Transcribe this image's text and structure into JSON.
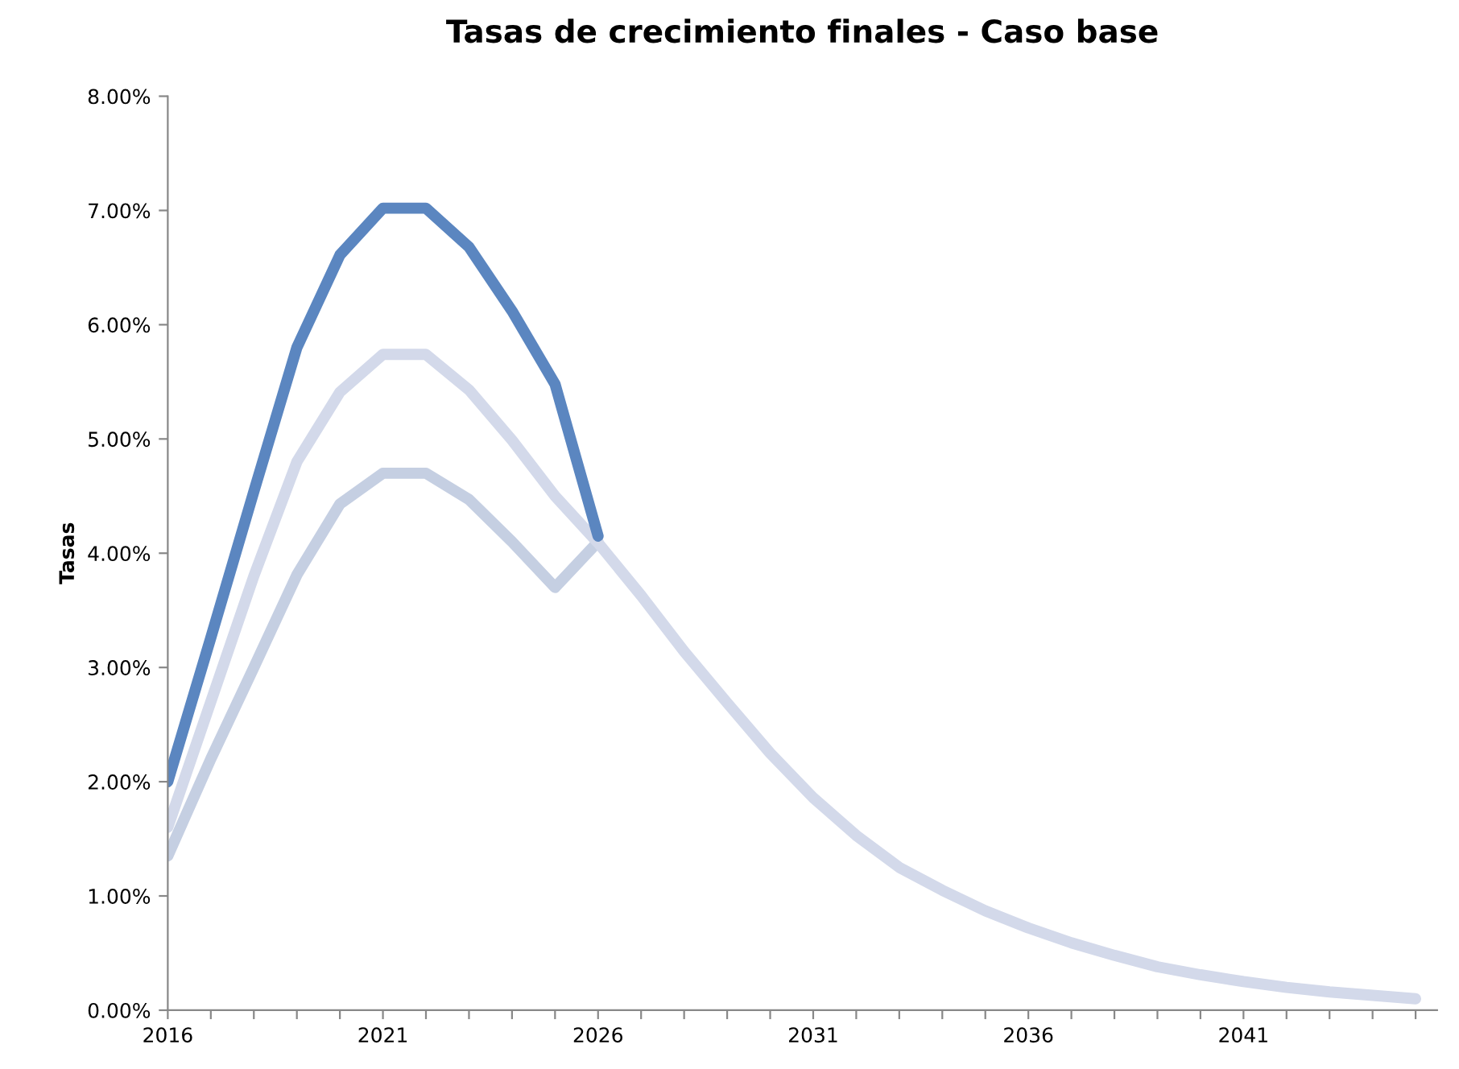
{
  "chart_data": {
    "type": "line",
    "title": "Tasas de crecimiento finales - Caso base",
    "ylabel": "Tasas",
    "x": [
      2016,
      2017,
      2018,
      2019,
      2020,
      2021,
      2022,
      2023,
      2024,
      2025,
      2026,
      2027,
      2028,
      2029,
      2030,
      2031,
      2032,
      2033,
      2034,
      2035,
      2036,
      2037,
      2038,
      2039,
      2040,
      2041,
      2042,
      2043,
      2044,
      2045
    ],
    "series": [
      {
        "color": "#c5cfe2",
        "values": [
          1.35,
          2.2,
          3.0,
          3.81,
          4.43,
          4.7,
          4.7,
          4.47,
          4.1,
          3.7,
          4.1,
          null,
          null,
          null,
          null,
          null,
          null,
          null,
          null,
          null,
          null,
          null,
          null,
          null,
          null,
          null,
          null,
          null,
          null,
          null
        ]
      },
      {
        "color": "#d3d9ea",
        "values": [
          1.6,
          2.7,
          3.8,
          4.8,
          5.41,
          5.74,
          5.74,
          5.43,
          4.99,
          4.5,
          4.09,
          3.63,
          3.14,
          2.69,
          2.25,
          1.86,
          1.53,
          1.25,
          1.05,
          0.87,
          0.72,
          0.59,
          0.48,
          0.38,
          0.31,
          0.25,
          0.2,
          0.16,
          0.13,
          0.1
        ]
      },
      {
        "color": "#5b86c0",
        "values": [
          2.0,
          3.26,
          4.54,
          5.8,
          6.61,
          7.02,
          7.02,
          6.68,
          6.12,
          5.48,
          4.15,
          null,
          null,
          null,
          null,
          null,
          null,
          null,
          null,
          null,
          null,
          null,
          null,
          null,
          null,
          null,
          null,
          null,
          null,
          null
        ]
      }
    ],
    "xlim": [
      2016,
      2045.5
    ],
    "xticks": [
      2016,
      {
        "value": 2017,
        "label": null
      },
      {
        "value": 2018,
        "label": null
      },
      {
        "value": 2019,
        "label": null
      },
      {
        "value": 2020,
        "label": null
      },
      2021,
      {
        "value": 2022,
        "label": null
      },
      {
        "value": 2023,
        "label": null
      },
      {
        "value": 2024,
        "label": null
      },
      {
        "value": 2025,
        "label": null
      },
      2026,
      {
        "value": 2027,
        "label": null
      },
      {
        "value": 2028,
        "label": null
      },
      {
        "value": 2029,
        "label": null
      },
      {
        "value": 2030,
        "label": null
      },
      2031,
      {
        "value": 2032,
        "label": null
      },
      {
        "value": 2033,
        "label": null
      },
      {
        "value": 2034,
        "label": null
      },
      {
        "value": 2035,
        "label": null
      },
      2036,
      {
        "value": 2037,
        "label": null
      },
      {
        "value": 2038,
        "label": null
      },
      {
        "value": 2039,
        "label": null
      },
      {
        "value": 2040,
        "label": null
      },
      2041,
      {
        "value": 2042,
        "label": null
      },
      {
        "value": 2043,
        "label": null
      },
      {
        "value": 2044,
        "label": null
      },
      {
        "value": 2045,
        "label": null
      }
    ],
    "ylim": [
      0,
      8
    ],
    "yticks": [
      {
        "value": 0,
        "label": "0.00%"
      },
      {
        "value": 1,
        "label": "1.00%"
      },
      {
        "value": 2,
        "label": "2.00%"
      },
      {
        "value": 3,
        "label": "3.00%"
      },
      {
        "value": 4,
        "label": "4.00%"
      },
      {
        "value": 5,
        "label": "5.00%"
      },
      {
        "value": 6,
        "label": "6.00%"
      },
      {
        "value": 7,
        "label": "7.00%"
      },
      {
        "value": 8,
        "label": "8.00%"
      }
    ],
    "grid": false,
    "legend": false,
    "marker": "none",
    "line_style": "solid"
  }
}
